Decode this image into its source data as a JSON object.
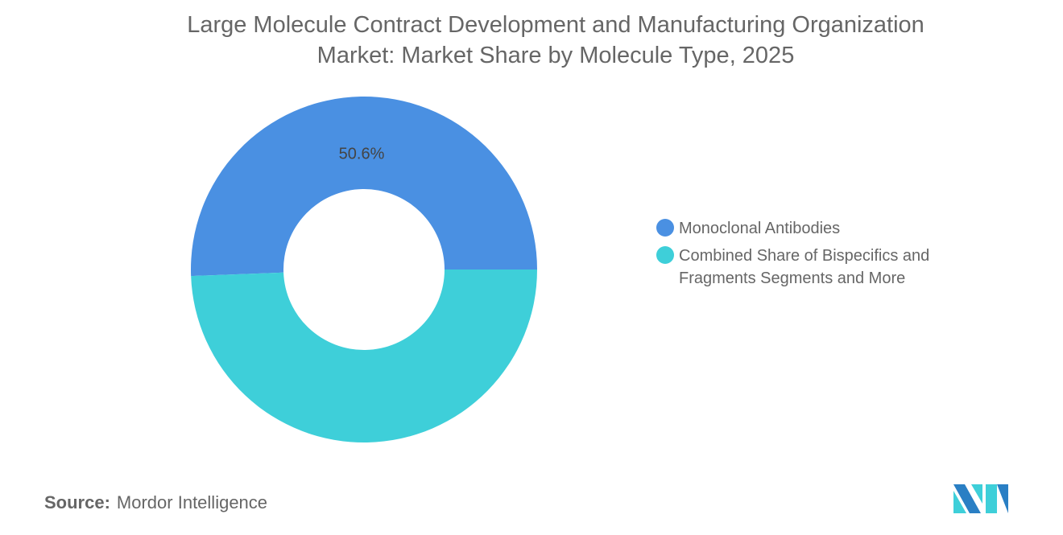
{
  "title_line1": "Large Molecule Contract Development and Manufacturing Organization",
  "title_line2": "Market: Market Share by Molecule Type, 2025",
  "chart_data": {
    "type": "pie",
    "donut": true,
    "title": "Large Molecule Contract Development and Manufacturing Organization Market: Market Share by Molecule Type, 2025",
    "categories": [
      "Monoclonal Antibodies",
      "Combined Share of Bispecifics and Fragments Segments and More"
    ],
    "values": [
      50.6,
      49.4
    ],
    "unit": "%",
    "colors": [
      "#4a90e2",
      "#3ecfd9"
    ],
    "data_labels": [
      "50.6%",
      ""
    ],
    "legend_position": "right"
  },
  "source_label": "Source:",
  "source_value": "Mordor Intelligence",
  "logo_text": "Mordor Intelligence"
}
